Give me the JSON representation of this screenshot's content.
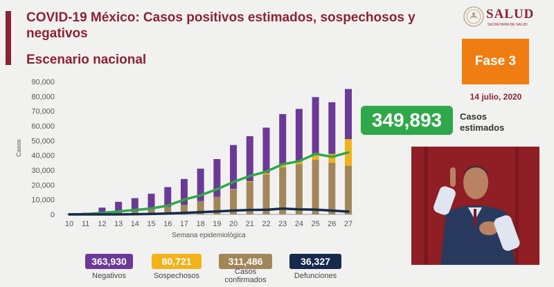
{
  "header": {
    "title": "COVID-19 México: Casos positivos estimados, sospechosos y negativos",
    "subtitle": "Escenario nacional"
  },
  "logo": {
    "text": "SALUD",
    "subtext": "SECRETARÍA DE SALUD"
  },
  "phase": {
    "label": "Fase 3",
    "color": "#f07d12"
  },
  "date": "14 julio, 2020",
  "estimated": {
    "value": "349,893",
    "label": "Casos estimados",
    "color": "#2fa84a"
  },
  "summary": [
    {
      "value": "363,930",
      "label": "Negativos",
      "color": "#6b3a96"
    },
    {
      "value": "80,721",
      "label": "Sospechosos",
      "color": "#f2b21c"
    },
    {
      "value": "311,486",
      "label": "Casos confirmados",
      "color": "#a08659"
    },
    {
      "value": "36,327",
      "label": "Defunciones",
      "color": "#17294d"
    }
  ],
  "chart_data": {
    "type": "bar",
    "stacked": true,
    "xlabel": "Semana epidemiológica",
    "ylabel": "Casos",
    "ylim": [
      0,
      90000
    ],
    "yticks": [
      0,
      10000,
      20000,
      30000,
      40000,
      50000,
      60000,
      70000,
      80000,
      90000
    ],
    "ytick_labels": [
      "0",
      "10,000",
      "20,000",
      "30,000",
      "40,000",
      "50,000",
      "60,000",
      "70,000",
      "80,000",
      "90,000"
    ],
    "categories": [
      "10",
      "11",
      "12",
      "13",
      "14",
      "15",
      "16",
      "17",
      "18",
      "19",
      "20",
      "21",
      "22",
      "23",
      "24",
      "25",
      "26",
      "27"
    ],
    "series": [
      {
        "name": "Casos confirmados",
        "kind": "bar",
        "color": "#a08659",
        "values": [
          0,
          100,
          600,
          1200,
          2100,
          3200,
          5000,
          6500,
          9000,
          12000,
          17000,
          22000,
          27000,
          32000,
          34000,
          37000,
          35000,
          33000
        ]
      },
      {
        "name": "Sospechosos",
        "kind": "bar",
        "color": "#f2b21c",
        "values": [
          0,
          0,
          0,
          0,
          0,
          0,
          0,
          0,
          0,
          0,
          200,
          500,
          1000,
          1500,
          2000,
          3000,
          6000,
          18000
        ]
      },
      {
        "name": "Negativos",
        "kind": "bar",
        "color": "#6b3a96",
        "values": [
          0,
          1000,
          4000,
          7300,
          8900,
          10800,
          13500,
          17500,
          22000,
          25500,
          29800,
          30500,
          30800,
          34500,
          35500,
          39500,
          35000,
          34000
        ]
      },
      {
        "name": "Casos estimados",
        "kind": "line",
        "color": "#2fa84a",
        "values": [
          0,
          200,
          1000,
          2000,
          3000,
          4000,
          6000,
          10000,
          13000,
          17000,
          22000,
          26000,
          29000,
          34000,
          36000,
          41000,
          39000,
          42000
        ]
      },
      {
        "name": "Defunciones",
        "kind": "line",
        "color": "#17294d",
        "values": [
          0,
          0,
          0,
          0,
          100,
          300,
          600,
          1000,
          1500,
          2000,
          2600,
          3000,
          3100,
          3900,
          3400,
          3200,
          2600,
          1900
        ]
      }
    ]
  }
}
